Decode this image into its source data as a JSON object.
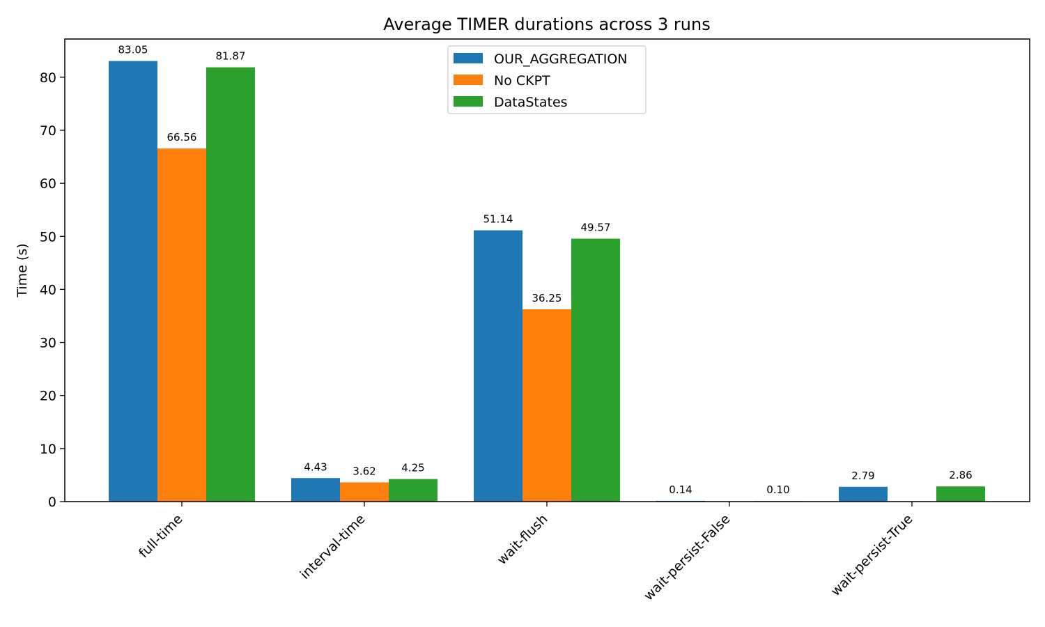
{
  "chart_data": {
    "type": "bar",
    "title": "Average TIMER durations across 3 runs",
    "xlabel": "",
    "ylabel": "Time (s)",
    "ylim": [
      0,
      87.2
    ],
    "yticks": [
      "0",
      "10",
      "20",
      "30",
      "40",
      "50",
      "60",
      "70",
      "80"
    ],
    "categories": [
      "full-time",
      "interval-time",
      "wait-flush",
      "wait-persist-False",
      "wait-persist-True"
    ],
    "series": [
      {
        "name": "OUR_AGGREGATION",
        "color": "#1f77b4",
        "values": [
          83.05,
          4.43,
          51.14,
          0.14,
          2.79
        ],
        "labels": [
          "83.05",
          "4.43",
          "51.14",
          "0.14",
          "2.79"
        ]
      },
      {
        "name": "No CKPT",
        "color": "#ff7f0e",
        "values": [
          66.56,
          3.62,
          36.25,
          null,
          null
        ],
        "labels": [
          "66.56",
          "3.62",
          "36.25",
          null,
          null
        ]
      },
      {
        "name": "DataStates",
        "color": "#2ca02c",
        "values": [
          81.87,
          4.25,
          49.57,
          0.1,
          2.86
        ],
        "labels": [
          "81.87",
          "4.25",
          "49.57",
          "0.10",
          "2.86"
        ]
      }
    ],
    "legend_position": "top-center",
    "grid": false
  }
}
